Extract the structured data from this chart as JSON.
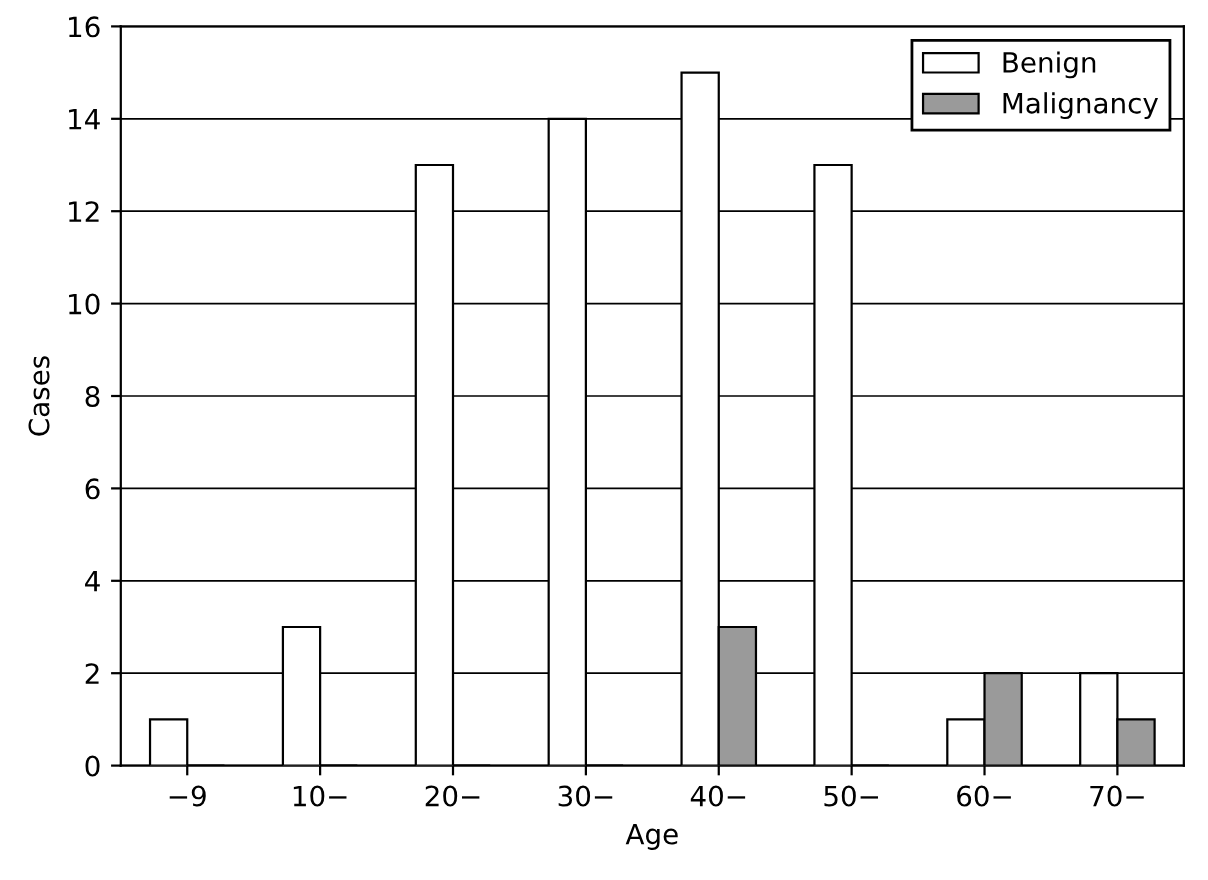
{
  "chart_data": {
    "type": "bar",
    "xlabel": "Age",
    "ylabel": "Cases",
    "categories": [
      "−9",
      "10−",
      "20−",
      "30−",
      "40−",
      "50−",
      "60−",
      "70−"
    ],
    "series": [
      {
        "name": "Benign",
        "color": "#ffffff",
        "values": [
          1,
          3,
          13,
          14,
          15,
          13,
          1,
          2
        ]
      },
      {
        "name": "Malignancy",
        "color": "#9a9a9a",
        "values": [
          0,
          0,
          0,
          0,
          3,
          0,
          2,
          1
        ]
      }
    ],
    "ylim": [
      0,
      16
    ],
    "yticks": [
      0,
      2,
      4,
      6,
      8,
      10,
      12,
      14,
      16
    ],
    "grid": "y",
    "legend": "top right"
  }
}
